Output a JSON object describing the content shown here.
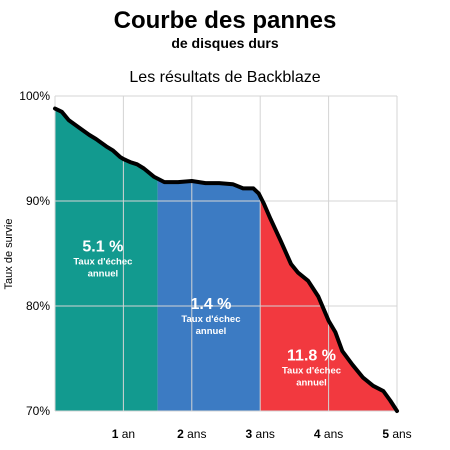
{
  "chart_data": {
    "type": "area",
    "title": "Courbe des pannes",
    "title_line2": "de disques durs",
    "subtitle": "Les résultats de Backblaze",
    "ylabel": "Taux de survie",
    "xlabel": "",
    "xlim": [
      0,
      5
    ],
    "ylim": [
      70,
      100
    ],
    "grid": true,
    "x_ticks": [
      {
        "value": 1,
        "number": "1",
        "unit": " an"
      },
      {
        "value": 2,
        "number": "2",
        "unit": " ans"
      },
      {
        "value": 3,
        "number": "3",
        "unit": " ans"
      },
      {
        "value": 4,
        "number": "4",
        "unit": " ans"
      },
      {
        "value": 5,
        "number": "5",
        "unit": " ans"
      }
    ],
    "y_ticks": [
      {
        "value": 100,
        "label": "100%"
      },
      {
        "value": 90,
        "label": "90%"
      },
      {
        "value": 80,
        "label": "80%"
      },
      {
        "value": 70,
        "label": "70%"
      }
    ],
    "series": [
      {
        "x": [
          0,
          0.1,
          0.2,
          0.35,
          0.5,
          0.6,
          0.75,
          0.85,
          0.95,
          1.0,
          1.1,
          1.2,
          1.3,
          1.45,
          1.6,
          1.8,
          2.0,
          2.2,
          2.4,
          2.6,
          2.75,
          2.8,
          2.9,
          2.98,
          3.05,
          3.15,
          3.3,
          3.45,
          3.55,
          3.7,
          3.85,
          4.0,
          4.1,
          4.2,
          4.35,
          4.5,
          4.65,
          4.8,
          4.9,
          5.0
        ],
        "y": [
          98.8,
          98.5,
          97.7,
          97.0,
          96.3,
          95.9,
          95.2,
          94.8,
          94.2,
          94.0,
          93.7,
          93.5,
          93.1,
          92.3,
          91.8,
          91.8,
          91.9,
          91.7,
          91.7,
          91.6,
          91.2,
          91.2,
          91.2,
          90.7,
          89.8,
          88.3,
          86.2,
          84.0,
          83.2,
          82.4,
          80.9,
          78.6,
          77.5,
          75.7,
          74.4,
          73.2,
          72.4,
          71.9,
          71.0,
          70.0
        ]
      }
    ],
    "periods": [
      {
        "from": 0,
        "to": 1.5,
        "color": "#129A8F",
        "rate": "5.1 %",
        "label_line1": "Taux d'échec",
        "label_line2": "annuel",
        "label_x": 0.7,
        "label_y": 85.2
      },
      {
        "from": 1.5,
        "to": 3.0,
        "color": "#3C7BC3",
        "rate": "1.4 %",
        "label_line1": "Taux d'échec",
        "label_line2": "annuel",
        "label_x": 2.28,
        "label_y": 79.7
      },
      {
        "from": 3.0,
        "to": 5.0,
        "color": "#F2393F",
        "rate": "11.8 %",
        "label_line1": "Taux d'échec",
        "label_line2": "annuel",
        "label_x": 3.75,
        "label_y": 74.8
      }
    ]
  }
}
